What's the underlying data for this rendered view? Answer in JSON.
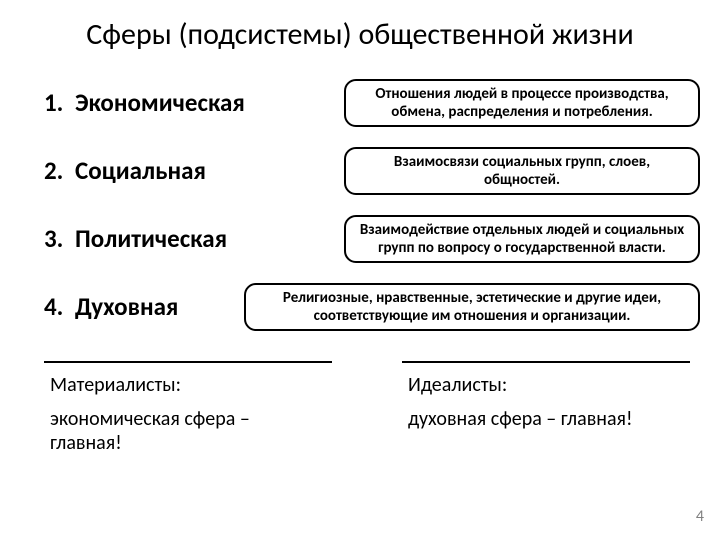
{
  "title": "Сферы (подсистемы) общественной жизни",
  "items": [
    {
      "num": "1.",
      "name": "Экономическая",
      "def": "Отношения людей в процессе производства, обмена, распределения и потребления."
    },
    {
      "num": "2.",
      "name": "Социальная",
      "def": "Взаимосвязи социальных групп, слоев, общностей."
    },
    {
      "num": "3.",
      "name": "Политическая",
      "def": "Взаимодействие отдельных людей и социальных групп по вопросу о государственной власти."
    },
    {
      "num": "4.",
      "name": "Духовная",
      "def": "Религиозные, нравственные, эстетические и другие идеи, соответствующие им отношения и организации."
    }
  ],
  "bottom": {
    "left_label": "Материалисты:",
    "left_claim": "экономическая сфера – главная!",
    "right_label": "Идеалисты:",
    "right_claim": "духовная сфера – главная!"
  },
  "page_number": "4",
  "colors": {
    "background": "#ffffff",
    "text": "#000000",
    "border": "#000000",
    "pagenum": "#808080"
  }
}
